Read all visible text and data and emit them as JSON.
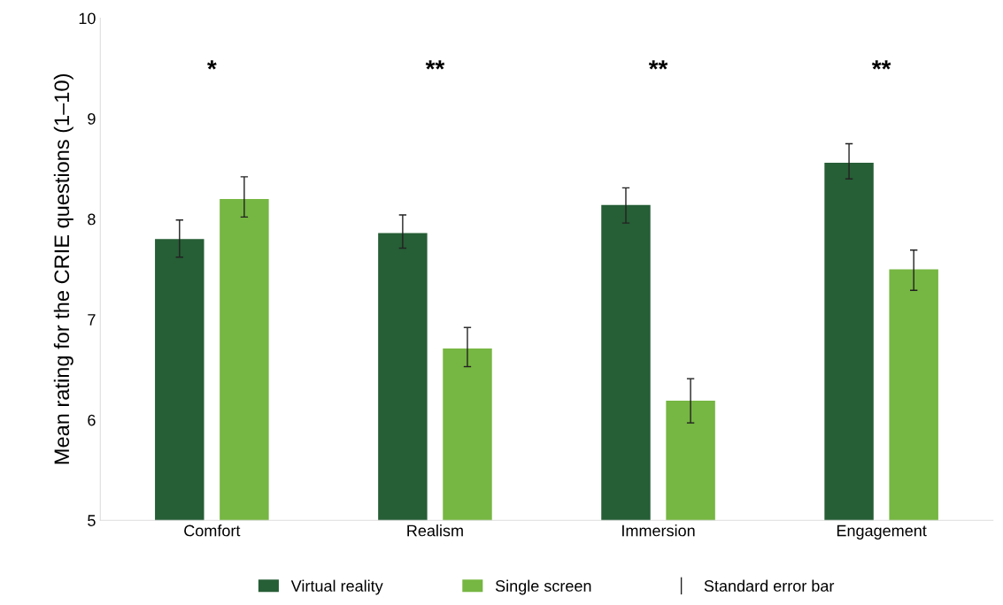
{
  "chart_data": {
    "type": "bar",
    "ylabel": "Mean rating for the CRIE questions (1–10)",
    "categories": [
      "Comfort",
      "Realism",
      "Immersion",
      "Engagement"
    ],
    "series": [
      {
        "name": "Virtual reality",
        "color": "#265e36",
        "values": [
          7.8,
          7.86,
          8.14,
          8.56
        ],
        "errors": [
          [
            7.62,
            7.99
          ],
          [
            7.71,
            8.04
          ],
          [
            7.96,
            8.31
          ],
          [
            8.4,
            8.75
          ]
        ]
      },
      {
        "name": "Single screen",
        "color": "#76b642",
        "values": [
          8.2,
          6.71,
          6.19,
          7.5
        ],
        "errors": [
          [
            8.02,
            8.42
          ],
          [
            6.53,
            6.92
          ],
          [
            5.97,
            6.41
          ],
          [
            7.29,
            7.69
          ]
        ]
      }
    ],
    "ylim": [
      5,
      10
    ],
    "yticks": [
      5,
      6,
      7,
      8,
      9,
      10
    ],
    "grid": false,
    "legend": "bottom",
    "annotations": [
      "*",
      "**",
      "**",
      "**",
      "Standard error bar"
    ]
  }
}
